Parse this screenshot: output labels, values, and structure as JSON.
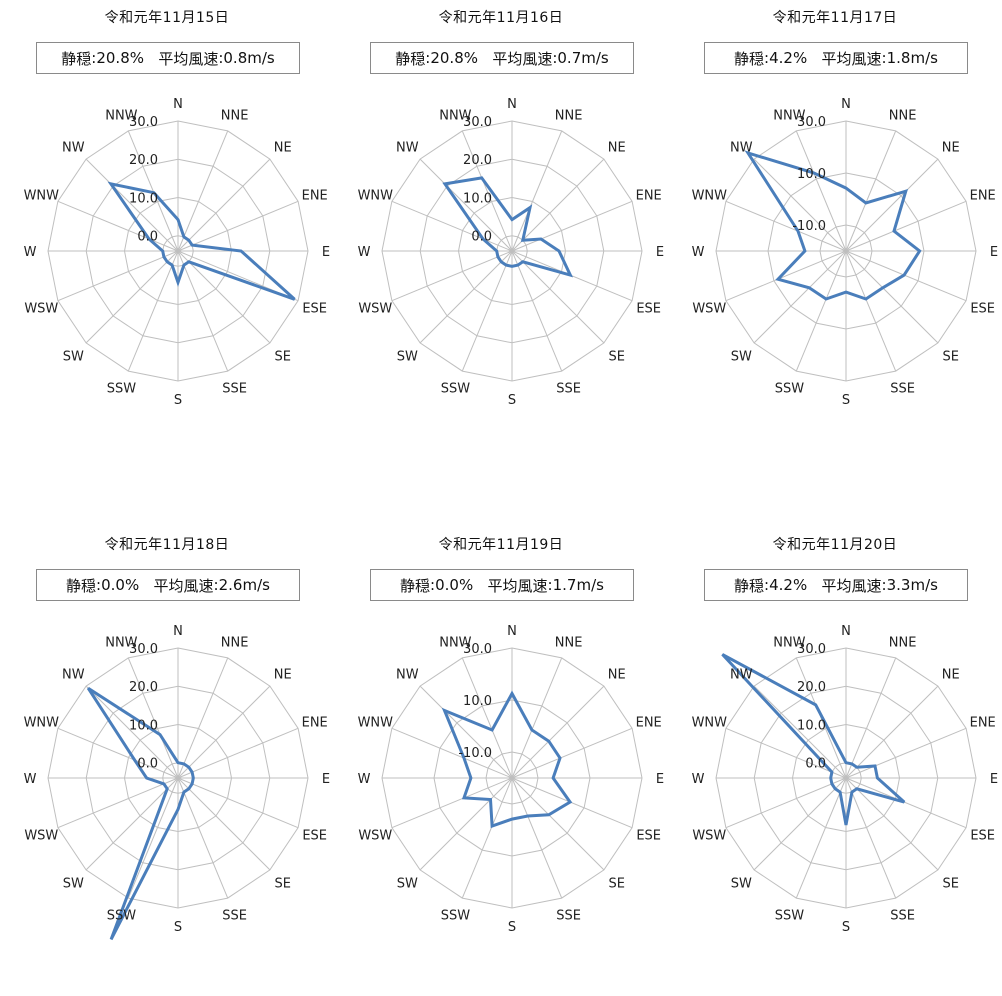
{
  "colors": {
    "series": "#4a7ebb",
    "grid": "#bfbfbf",
    "box_border": "#8a8a8a"
  },
  "chart_data": [
    {
      "type": "radar",
      "title": "令和元年11月15日",
      "calm_label": "静穏",
      "calm_value": "20.8%",
      "avg_label": "平均風速",
      "avg_value": "0.8m/s",
      "directions": [
        "N",
        "NNE",
        "NE",
        "ENE",
        "E",
        "ESE",
        "SE",
        "SSE",
        "S",
        "SSW",
        "SW",
        "WSW",
        "W",
        "WNW",
        "NW",
        "NNW"
      ],
      "ticks": [
        "0.0",
        "10.0",
        "20.0",
        "30.0"
      ],
      "rlim": [
        -4,
        30
      ],
      "values": [
        4.2,
        0,
        0,
        0,
        12.5,
        29,
        0,
        0,
        4.2,
        0,
        0,
        0,
        0,
        4.2,
        20.8,
        12.5
      ]
    },
    {
      "type": "radar",
      "title": "令和元年11月16日",
      "calm_label": "静穏",
      "calm_value": "20.8%",
      "avg_label": "平均風速",
      "avg_value": "0.7m/s",
      "directions": [
        "N",
        "NNE",
        "NE",
        "ENE",
        "E",
        "ESE",
        "SE",
        "SSE",
        "S",
        "SSW",
        "SW",
        "WSW",
        "W",
        "WNW",
        "NW",
        "NNW"
      ],
      "ticks": [
        "0.0",
        "10.0",
        "20.0",
        "30.0"
      ],
      "rlim": [
        -4,
        30
      ],
      "values": [
        4.2,
        8.3,
        0,
        4.2,
        8.3,
        12.5,
        0,
        0,
        0,
        0,
        0,
        0,
        0,
        4.2,
        20.8,
        16.7
      ]
    },
    {
      "type": "radar",
      "title": "令和元年11月17日",
      "calm_label": "静穏",
      "calm_value": "4.2%",
      "avg_label": "平均風速",
      "avg_value": "1.8m/s",
      "directions": [
        "N",
        "NNE",
        "NE",
        "ENE",
        "E",
        "ESE",
        "SE",
        "SSE",
        "S",
        "SSW",
        "SW",
        "WSW",
        "W",
        "WNW",
        "NW",
        "NNW"
      ],
      "ticks": [
        "-10.0",
        "10.0",
        "30.0"
      ],
      "rlim": [
        -20,
        30
      ],
      "values": [
        4.2,
        0,
        12.5,
        0,
        8.3,
        4.2,
        0,
        0,
        -4.2,
        0,
        0,
        8.3,
        -4.2,
        0,
        33.3,
        12.5
      ]
    },
    {
      "type": "radar",
      "title": "令和元年11月18日",
      "calm_label": "静穏",
      "calm_value": "0.0%",
      "avg_label": "平均風速",
      "avg_value": "2.6m/s",
      "directions": [
        "N",
        "NNE",
        "NE",
        "ENE",
        "E",
        "ESE",
        "SE",
        "SSE",
        "S",
        "SSW",
        "SW",
        "WSW",
        "W",
        "WNW",
        "NW",
        "NNW"
      ],
      "ticks": [
        "0.0",
        "10.0",
        "20.0",
        "30.0"
      ],
      "rlim": [
        -4,
        30
      ],
      "values": [
        0,
        0,
        0,
        0,
        0,
        0,
        0,
        0,
        4.2,
        41.7,
        0,
        0,
        4.2,
        8.3,
        29.2,
        8.3
      ]
    },
    {
      "type": "radar",
      "title": "令和元年11月19日",
      "calm_label": "静穏",
      "calm_value": "0.0%",
      "avg_label": "平均風速",
      "avg_value": "1.7m/s",
      "directions": [
        "N",
        "NNE",
        "NE",
        "ENE",
        "E",
        "ESE",
        "SE",
        "SSE",
        "S",
        "SSW",
        "SW",
        "WSW",
        "W",
        "WNW",
        "NW",
        "NNW"
      ],
      "ticks": [
        "-10.0",
        "10.0",
        "30.0"
      ],
      "rlim": [
        -20,
        30
      ],
      "values": [
        12.5,
        0,
        0,
        0,
        -4.2,
        4.2,
        0,
        -4.2,
        -4.2,
        0,
        -8.3,
        0,
        -4.2,
        0,
        16.7,
        0
      ]
    },
    {
      "type": "radar",
      "title": "令和元年11月20日",
      "calm_label": "静穏",
      "calm_value": "4.2%",
      "avg_label": "平均風速",
      "avg_value": "3.3m/s",
      "directions": [
        "N",
        "NNE",
        "NE",
        "ENE",
        "E",
        "ESE",
        "SE",
        "SSE",
        "S",
        "SSW",
        "SW",
        "WSW",
        "W",
        "WNW",
        "NW",
        "NNW"
      ],
      "ticks": [
        "0.0",
        "10.0",
        "20.0",
        "30.0"
      ],
      "rlim": [
        -4,
        30
      ],
      "values": [
        0,
        0,
        0,
        4.2,
        4.2,
        12.5,
        0,
        0,
        8.3,
        0,
        0,
        0,
        0,
        0,
        41.7,
        16.7
      ]
    }
  ]
}
